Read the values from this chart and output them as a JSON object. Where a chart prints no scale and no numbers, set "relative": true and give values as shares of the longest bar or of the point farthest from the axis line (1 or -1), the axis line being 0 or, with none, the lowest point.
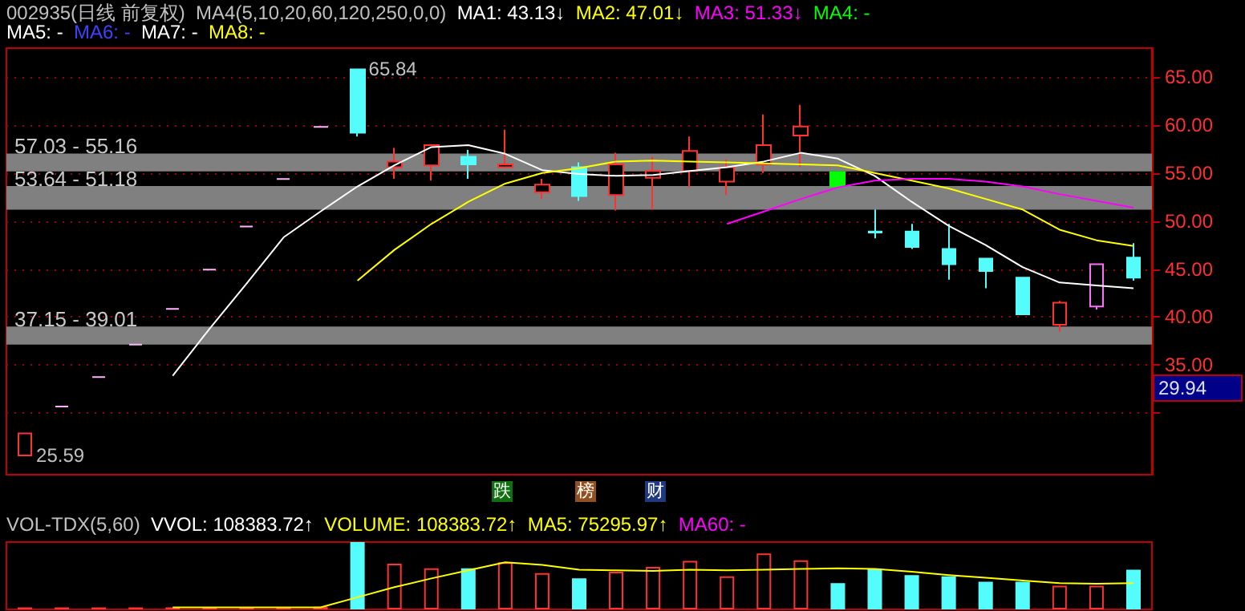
{
  "chart_data": [
    {
      "type": "candlestick",
      "title": "002935(日线 前复权)",
      "categories": [
        null,
        null,
        null,
        null,
        null,
        null,
        null,
        null,
        null,
        null,
        null,
        null,
        null,
        null,
        null,
        null,
        null,
        null,
        null,
        null,
        null,
        null,
        null,
        null,
        null,
        null,
        null,
        null,
        null,
        null,
        null
      ],
      "ohlc": [
        [
          25.6,
          27.9,
          25.59,
          27.9
        ],
        [
          30.69,
          30.69,
          30.69,
          30.69
        ],
        [
          33.76,
          33.76,
          33.76,
          33.76
        ],
        [
          37.14,
          37.14,
          37.14,
          37.14
        ],
        [
          40.85,
          40.85,
          40.85,
          40.85
        ],
        [
          44.94,
          44.94,
          44.94,
          44.94
        ],
        [
          49.43,
          49.43,
          49.43,
          49.43
        ],
        [
          54.37,
          54.37,
          54.37,
          54.37
        ],
        [
          59.81,
          59.81,
          59.81,
          59.81
        ],
        [
          65.79,
          65.84,
          58.8,
          59.2
        ],
        [
          55.6,
          57.6,
          54.4,
          56.2
        ],
        [
          55.8,
          58.0,
          54.2,
          57.9
        ],
        [
          56.7,
          57.4,
          54.4,
          55.9
        ],
        [
          55.6,
          59.5,
          55.6,
          55.9
        ],
        [
          53.0,
          54.4,
          52.3,
          53.8
        ],
        [
          55.6,
          56.1,
          52.1,
          52.6
        ],
        [
          52.7,
          57.1,
          51.1,
          55.9
        ],
        [
          54.5,
          56.7,
          51.2,
          55.2
        ],
        [
          55.2,
          58.8,
          53.5,
          57.3
        ],
        [
          54.1,
          56.4,
          52.7,
          55.6
        ],
        [
          55.9,
          61.1,
          55.0,
          57.9
        ],
        [
          58.9,
          62.1,
          55.6,
          59.85
        ],
        [
          55.1,
          55.1,
          53.6,
          53.6
        ],
        [
          48.9,
          51.2,
          48.2,
          48.8
        ],
        [
          48.9,
          49.7,
          47.1,
          47.3
        ],
        [
          47.1,
          49.7,
          43.9,
          45.5
        ],
        [
          46.1,
          46.1,
          43.0,
          44.8
        ],
        [
          44.1,
          44.1,
          40.2,
          40.3
        ],
        [
          39.2,
          41.7,
          38.5,
          41.5
        ],
        [
          41.1,
          45.5,
          40.8,
          45.5
        ],
        [
          46.2,
          47.7,
          43.8,
          44.1
        ]
      ],
      "colors": [
        "#ff3232",
        "#ffb4ff",
        "#ffb4ff",
        "#ffb4ff",
        "#ffb4ff",
        "#ffb4ff",
        "#ffb4ff",
        "#ffb4ff",
        "#ffb4ff",
        "#54fcfc",
        "#ff3232",
        "#ff3232",
        "#54fcfc",
        "#ff3232",
        "#ff3232",
        "#54fcfc",
        "#ff3232",
        "#ff3232",
        "#ff3232",
        "#ff3232",
        "#ff3232",
        "#ff3232",
        "#00ff00",
        "#54fcfc",
        "#54fcfc",
        "#54fcfc",
        "#54fcfc",
        "#54fcfc",
        "#ff3232",
        "#ff6eff",
        "#54fcfc"
      ],
      "series": [
        {
          "type": "line",
          "color": "#ffffff",
          "values": [
            null,
            null,
            null,
            null,
            33.9,
            38.8,
            43.5,
            48.3,
            51.0,
            53.6,
            55.8,
            57.7,
            57.9,
            57.0,
            55.3,
            54.9,
            54.7,
            54.8,
            55.2,
            55.6,
            56.2,
            57.1,
            56.5,
            54.7,
            52.0,
            49.5,
            47.5,
            45.2,
            43.6,
            43.3,
            43.0
          ]
        },
        {
          "type": "line",
          "color": "#ffff00",
          "values": [
            null,
            null,
            null,
            null,
            null,
            null,
            null,
            null,
            null,
            43.8,
            47.0,
            49.7,
            52.0,
            53.9,
            55.0,
            55.5,
            56.2,
            56.3,
            56.2,
            56.1,
            56.0,
            55.9,
            55.8,
            55.0,
            54.2,
            53.4,
            52.3,
            51.2,
            49.1,
            48.0,
            47.4
          ]
        },
        {
          "type": "line",
          "color": "#ff00ff",
          "values": [
            null,
            null,
            null,
            null,
            null,
            null,
            null,
            null,
            null,
            null,
            null,
            null,
            null,
            null,
            null,
            null,
            null,
            null,
            null,
            49.7,
            51.0,
            52.3,
            53.5,
            54.2,
            54.4,
            54.4,
            54.1,
            53.6,
            52.8,
            52.1,
            51.4
          ]
        }
      ],
      "ylim": [
        23.6,
        68
      ],
      "yticks": [
        {
          "value": 30,
          "label": null
        },
        {
          "value": 35,
          "label": "35.00"
        },
        {
          "value": 40,
          "label": "40.00"
        },
        {
          "value": 45,
          "label": "45.00"
        },
        {
          "value": 50,
          "label": "50.00"
        },
        {
          "value": 55,
          "label": "55.00"
        },
        {
          "value": 60,
          "label": "60.00"
        },
        {
          "value": 65,
          "label": "65.00"
        }
      ],
      "grid": "y",
      "bands": [
        {
          "axis": "y",
          "from": 55.16,
          "to": 57.03,
          "label": "57.03 - 55.16",
          "color": "#808080"
        },
        {
          "axis": "y",
          "from": 51.18,
          "to": 53.64,
          "label": "53.64 - 51.18",
          "color": "#808080"
        },
        {
          "axis": "y",
          "from": 37.15,
          "to": 39.01,
          "label": "37.15 - 39.01",
          "color": "#808080"
        }
      ],
      "annotations": [
        "MA4(5,10,20,60,120,250,0,0)",
        "MA1: 43.13↓",
        "MA2: 47.01↓",
        "MA3: 51.33↓",
        "MA4: -",
        "MA5: -",
        "MA6: -",
        "MA7: -",
        "MA8: -",
        {
          "text": "跌"
        },
        {
          "text": "榜"
        },
        {
          "text": "财"
        },
        "65.84",
        "25.59",
        "29.94"
      ]
    },
    {
      "type": "bar",
      "relative": true,
      "categories": [
        null,
        null,
        null,
        null,
        null,
        null,
        null,
        null,
        null,
        null,
        null,
        null,
        null,
        null,
        null,
        null,
        null,
        null,
        null,
        null,
        null,
        null,
        null,
        null,
        null,
        null,
        null,
        null,
        null,
        null,
        null
      ],
      "series": [
        {
          "type": "bar",
          "colors": [
            "#ff3232",
            "#ff3232",
            "#ff3232",
            "#ff3232",
            "#ff3232",
            "#ff3232",
            "#ff3232",
            "#ff3232",
            "#ff3232",
            "#54fcfc",
            "#ff3232",
            "#ff3232",
            "#54fcfc",
            "#ff3232",
            "#ff3232",
            "#54fcfc",
            "#ff3232",
            "#ff3232",
            "#ff3232",
            "#ff3232",
            "#ff3232",
            "#ff3232",
            "#54fcfc",
            "#54fcfc",
            "#54fcfc",
            "#54fcfc",
            "#54fcfc",
            "#54fcfc",
            "#ff3232",
            "#ff3232",
            "#54fcfc"
          ],
          "values": [
            0.03,
            0.03,
            0.03,
            0.03,
            0.03,
            0.03,
            0.03,
            0.03,
            0.04,
            1,
            0.68,
            0.61,
            0.61,
            0.7,
            0.54,
            0.46,
            0.56,
            0.63,
            0.72,
            0.49,
            0.83,
            0.73,
            0.39,
            0.6,
            0.51,
            0.49,
            0.41,
            0.41,
            0.35,
            0.35,
            0.59
          ]
        },
        {
          "type": "line",
          "color": "#ffff00",
          "values": [
            null,
            null,
            null,
            null,
            0.03,
            0.03,
            0.03,
            0.03,
            0.03,
            0.18,
            0.33,
            0.46,
            0.58,
            0.7,
            0.66,
            0.59,
            0.58,
            0.57,
            0.59,
            0.58,
            0.59,
            0.6,
            0.61,
            0.6,
            0.56,
            0.51,
            0.47,
            0.43,
            0.39,
            0.38,
            0.39
          ]
        }
      ],
      "annotations": [
        "VOL-TDX(5,60)",
        "VVOL: 108383.72↑",
        "VOLUME: 108383.72↑",
        "MA5: 75295.97↑",
        "MA60: -"
      ]
    }
  ]
}
